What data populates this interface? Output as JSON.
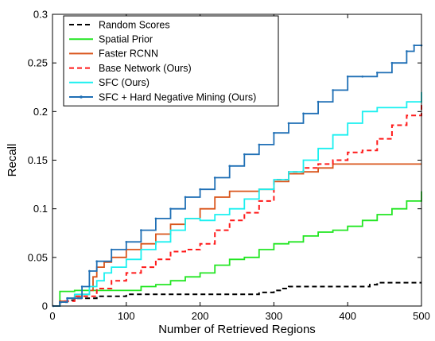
{
  "chart_data": {
    "type": "line",
    "xlabel": "Number of Retrieved Regions",
    "ylabel": "Recall",
    "xlim": [
      0,
      500
    ],
    "ylim": [
      0,
      0.3
    ],
    "x_ticks": [
      0,
      100,
      200,
      300,
      400,
      500
    ],
    "y_ticks": [
      0,
      0.05,
      0.1,
      0.15,
      0.2,
      0.25,
      0.3
    ],
    "x_tick_labels": [
      "0",
      "100",
      "200",
      "300",
      "400",
      "500"
    ],
    "y_tick_labels": [
      "0",
      "0.05",
      "0.1",
      "0.15",
      "0.2",
      "0.25",
      "0.3"
    ],
    "grid": false,
    "legend_position": "top-left",
    "series": [
      {
        "name": "Random Scores",
        "color": "#000000",
        "dash": "6,4",
        "marker": false,
        "x": [
          1,
          10,
          20,
          30,
          60,
          100,
          140,
          200,
          280,
          300,
          310,
          320,
          330,
          420,
          430,
          440,
          500
        ],
        "y": [
          0,
          0.004,
          0.006,
          0.008,
          0.01,
          0.012,
          0.012,
          0.012,
          0.014,
          0.016,
          0.018,
          0.02,
          0.02,
          0.02,
          0.022,
          0.024,
          0.024
        ]
      },
      {
        "name": "Spatial Prior",
        "color": "#22e622",
        "dash": "",
        "marker": false,
        "x": [
          1,
          10,
          30,
          60,
          100,
          120,
          140,
          160,
          180,
          200,
          220,
          240,
          260,
          280,
          300,
          320,
          340,
          360,
          380,
          400,
          420,
          440,
          460,
          480,
          500
        ],
        "y": [
          0,
          0.015,
          0.016,
          0.016,
          0.016,
          0.02,
          0.022,
          0.026,
          0.03,
          0.034,
          0.042,
          0.048,
          0.05,
          0.058,
          0.064,
          0.066,
          0.072,
          0.076,
          0.078,
          0.082,
          0.088,
          0.094,
          0.1,
          0.108,
          0.118
        ]
      },
      {
        "name": "Faster RCNN",
        "color": "#d9541a",
        "dash": "",
        "marker": false,
        "x": [
          1,
          10,
          20,
          30,
          40,
          50,
          55,
          60,
          70,
          80,
          100,
          120,
          140,
          160,
          180,
          200,
          220,
          240,
          260,
          280,
          300,
          320,
          340,
          360,
          380,
          500
        ],
        "y": [
          0,
          0.005,
          0.008,
          0.01,
          0.012,
          0.016,
          0.03,
          0.04,
          0.045,
          0.05,
          0.058,
          0.064,
          0.074,
          0.084,
          0.09,
          0.1,
          0.112,
          0.118,
          0.118,
          0.12,
          0.128,
          0.136,
          0.138,
          0.142,
          0.146,
          0.146
        ]
      },
      {
        "name": "Base Network (Ours)",
        "color": "#ff1a1a",
        "dash": "6,4",
        "marker": false,
        "x": [
          1,
          10,
          30,
          60,
          80,
          100,
          120,
          140,
          160,
          180,
          200,
          220,
          240,
          260,
          280,
          300,
          320,
          340,
          360,
          380,
          400,
          420,
          440,
          460,
          480,
          500
        ],
        "y": [
          0,
          0.005,
          0.01,
          0.018,
          0.026,
          0.034,
          0.04,
          0.048,
          0.056,
          0.058,
          0.064,
          0.078,
          0.088,
          0.096,
          0.108,
          0.13,
          0.138,
          0.142,
          0.146,
          0.15,
          0.158,
          0.16,
          0.172,
          0.186,
          0.196,
          0.208
        ]
      },
      {
        "name": "SFC (Ours)",
        "color": "#1af0f0",
        "dash": "",
        "marker": false,
        "x": [
          1,
          10,
          20,
          30,
          50,
          60,
          70,
          80,
          100,
          120,
          140,
          160,
          180,
          200,
          220,
          240,
          260,
          280,
          300,
          320,
          340,
          360,
          380,
          400,
          420,
          440,
          460,
          480,
          500
        ],
        "y": [
          0,
          0.004,
          0.008,
          0.012,
          0.02,
          0.026,
          0.034,
          0.04,
          0.048,
          0.058,
          0.066,
          0.078,
          0.09,
          0.088,
          0.094,
          0.1,
          0.11,
          0.12,
          0.13,
          0.138,
          0.15,
          0.162,
          0.176,
          0.188,
          0.2,
          0.204,
          0.204,
          0.21,
          0.22
        ]
      },
      {
        "name": "SFC + Hard Negative Mining (Ours)",
        "color": "#1f6fb5",
        "dash": "",
        "marker": true,
        "x": [
          1,
          10,
          20,
          40,
          50,
          60,
          80,
          100,
          120,
          140,
          160,
          180,
          200,
          220,
          240,
          260,
          280,
          300,
          320,
          340,
          360,
          380,
          400,
          420,
          440,
          460,
          480,
          490,
          500
        ],
        "y": [
          0,
          0.004,
          0.008,
          0.02,
          0.036,
          0.046,
          0.058,
          0.066,
          0.078,
          0.09,
          0.1,
          0.112,
          0.12,
          0.132,
          0.144,
          0.156,
          0.166,
          0.178,
          0.188,
          0.198,
          0.21,
          0.222,
          0.236,
          0.236,
          0.24,
          0.25,
          0.262,
          0.268,
          0.268
        ]
      }
    ]
  }
}
